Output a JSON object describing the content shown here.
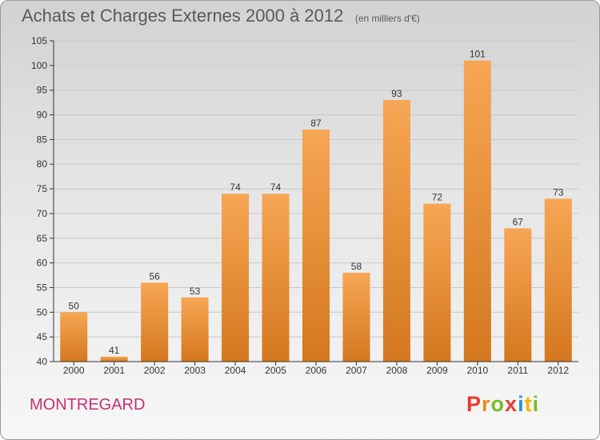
{
  "header": {
    "title": "Achats et Charges Externes 2000 à 2012",
    "unit": "(en milliers d'€)"
  },
  "footer": {
    "commune": "MONTREGARD",
    "logo": "Proxiti"
  },
  "colors": {
    "bar_light": "#f7a654",
    "bar_dark": "#d4781e",
    "axis": "#333333",
    "grid": "#c8c8c8",
    "title": "#595959",
    "commune": "#c43276",
    "logo_letters": [
      "#e53c2e",
      "#f08a1a",
      "#7cbc25",
      "#e53c2e",
      "#2c8fd6",
      "#f4b400",
      "#7cbc25"
    ]
  },
  "chart_data": {
    "type": "bar",
    "title": "Achats et Charges Externes 2000 à 2012",
    "categories": [
      "2000",
      "2001",
      "2002",
      "2003",
      "2004",
      "2005",
      "2006",
      "2007",
      "2008",
      "2009",
      "2010",
      "2011",
      "2012"
    ],
    "values": [
      50,
      41,
      56,
      53,
      74,
      74,
      87,
      58,
      93,
      72,
      101,
      67,
      73
    ],
    "xlabel": "",
    "ylabel": "",
    "ylim": [
      40,
      105
    ],
    "yticks": [
      40,
      45,
      50,
      55,
      60,
      65,
      70,
      75,
      80,
      85,
      90,
      95,
      100,
      105
    ],
    "grid": "y",
    "data_labels": true
  }
}
